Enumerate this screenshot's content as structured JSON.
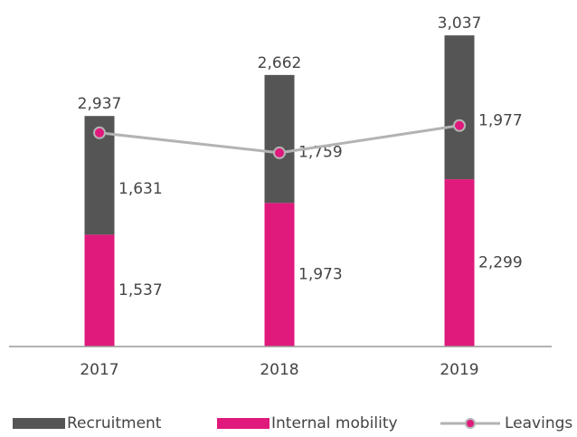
{
  "chart_data": {
    "type": "bar",
    "stacked": true,
    "categories": [
      "2017",
      "2018",
      "2019"
    ],
    "series": [
      {
        "name": "Internal mobility",
        "color": "#e0197d",
        "values": [
          1537,
          1973,
          2299
        ],
        "value_labels": [
          "1,537",
          "1,973",
          "2,299"
        ]
      },
      {
        "name": "Recruitment",
        "color": "#555555",
        "values": [
          1631,
          1759,
          1977
        ],
        "value_labels": [
          "1,631",
          "1,759",
          "1,977"
        ]
      },
      {
        "name": "Leavings",
        "type": "line",
        "color": "#b3b3b3",
        "marker_color": "#e0197d",
        "values": [
          2937,
          2662,
          3037
        ],
        "value_labels": [
          "2,937",
          "2,662",
          "3,037"
        ]
      }
    ],
    "legend_order": [
      "Recruitment",
      "Internal mobility",
      "Leavings"
    ],
    "ylim": [
      0,
      4700
    ],
    "grid": false,
    "legend": "bottom"
  }
}
